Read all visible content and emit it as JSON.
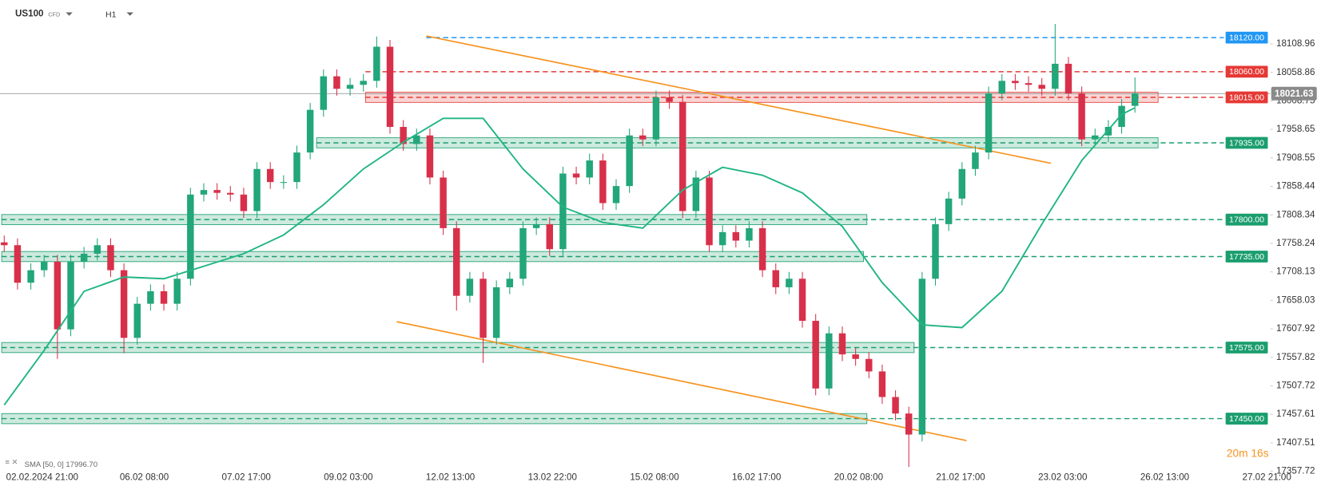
{
  "header": {
    "symbol": "US100",
    "kind": "CFD",
    "timeframe": "H1"
  },
  "chart_data": {
    "type": "candlestick",
    "x_labels": [
      "02.02.2024  21:00",
      "06.02  08:00",
      "07.02  17:00",
      "09.02  03:00",
      "12.02  13:00",
      "13.02  22:00",
      "15.02  08:00",
      "16.02  17:00",
      "20.02  08:00",
      "21.02  17:00",
      "23.02  03:00",
      "26.02  13:00",
      "27.02  21:00"
    ],
    "open": [
      17760,
      17755,
      17689,
      17711,
      17726,
      17607,
      17726,
      17740,
      17755,
      17711,
      17592,
      17652,
      17674,
      17652,
      17696,
      17844,
      17852,
      17847,
      17844,
      17815,
      17889,
      17866,
      17866,
      17918,
      17993,
      18052,
      18030,
      18037,
      18044,
      18104,
      17963,
      17933,
      17948,
      17874,
      17785,
      17666,
      17696,
      17592,
      17681,
      17696,
      17785,
      17792,
      17748,
      17881,
      17874,
      17904,
      17829,
      17859,
      17948,
      17941,
      18015,
      18007,
      17815,
      17874,
      17755,
      17778,
      17763,
      17785,
      17711,
      17681,
      17696,
      17622,
      17503,
      17600,
      17563,
      17555,
      17533,
      17488,
      17459,
      17422,
      17696,
      17792,
      17837,
      17889,
      17918,
      18022,
      18044,
      18040,
      18037,
      18030,
      18074,
      18022,
      17941,
      17948,
      17963,
      18000
    ],
    "high": [
      17772,
      17767,
      17723,
      17738,
      17738,
      17738,
      17752,
      17767,
      17767,
      17723,
      17664,
      17686,
      17686,
      17708,
      17856,
      17864,
      17864,
      17859,
      17856,
      17901,
      17901,
      17878,
      17930,
      18005,
      18064,
      18064,
      18049,
      18056,
      18122,
      18116,
      17975,
      17960,
      17960,
      17886,
      17797,
      17708,
      17708,
      17693,
      17708,
      17797,
      17804,
      17804,
      17893,
      17893,
      17916,
      17916,
      17871,
      17960,
      17960,
      18027,
      18027,
      18019,
      17886,
      17886,
      17790,
      17790,
      17797,
      17797,
      17723,
      17708,
      17708,
      17634,
      17612,
      17612,
      17575,
      17567,
      17545,
      17500,
      17471,
      17708,
      17804,
      17849,
      17901,
      17930,
      18034,
      18056,
      18056,
      18052,
      18049,
      18144,
      18086,
      18034,
      17960,
      17975,
      18012,
      18050
    ],
    "low": [
      17743,
      17677,
      17677,
      17699,
      17555,
      17595,
      17714,
      17728,
      17699,
      17565,
      17580,
      17640,
      17640,
      17640,
      17684,
      17832,
      17835,
      17832,
      17803,
      17803,
      17854,
      17854,
      17854,
      17906,
      17981,
      18018,
      18018,
      18025,
      18032,
      17951,
      17921,
      17921,
      17862,
      17773,
      17640,
      17654,
      17548,
      17580,
      17669,
      17684,
      17773,
      17736,
      17736,
      17862,
      17862,
      17817,
      17817,
      17847,
      17929,
      17929,
      17995,
      17803,
      17803,
      17743,
      17743,
      17751,
      17751,
      17699,
      17669,
      17669,
      17610,
      17491,
      17491,
      17551,
      17543,
      17521,
      17476,
      17447,
      17365,
      17410,
      17684,
      17780,
      17825,
      17877,
      17906,
      18010,
      18028,
      18025,
      18018,
      18018,
      18010,
      17929,
      17929,
      17936,
      17951,
      17988
    ],
    "close": [
      17755,
      17689,
      17711,
      17726,
      17607,
      17726,
      17740,
      17755,
      17711,
      17592,
      17652,
      17674,
      17652,
      17696,
      17844,
      17852,
      17847,
      17844,
      17815,
      17889,
      17866,
      17866,
      17918,
      17993,
      18052,
      18030,
      18037,
      18044,
      18104,
      17963,
      17933,
      17948,
      17874,
      17785,
      17666,
      17696,
      17592,
      17681,
      17696,
      17785,
      17792,
      17748,
      17881,
      17874,
      17904,
      17829,
      17859,
      17948,
      17941,
      18015,
      18007,
      17815,
      17874,
      17755,
      17778,
      17763,
      17785,
      17711,
      17681,
      17696,
      17622,
      17503,
      17600,
      17563,
      17555,
      17533,
      17488,
      17459,
      17422,
      17696,
      17792,
      17837,
      17889,
      17918,
      18022,
      18044,
      18040,
      18037,
      18030,
      18074,
      18022,
      17941,
      17948,
      17963,
      18000,
      18022
    ],
    "up_color": "#22a67a",
    "down_color": "#d8304a",
    "ylim": [
      17347.7,
      18185.2
    ],
    "yticks": [
      18108.96,
      18058.86,
      18008.75,
      17958.65,
      17908.55,
      17858.44,
      17808.34,
      17758.24,
      17708.13,
      17658.03,
      17607.92,
      17557.82,
      17507.72,
      17457.61,
      17407.51,
      17357.72
    ],
    "sma": {
      "label": "SMA [50, 0] 17996.70",
      "color": "#21b584",
      "x": [
        0,
        3,
        6,
        9,
        12,
        15,
        18,
        21,
        24,
        27,
        30,
        33,
        36,
        39,
        42,
        45,
        48,
        51,
        54,
        57,
        60,
        63,
        66,
        69,
        72,
        75,
        78,
        81,
        84,
        85
      ],
      "values": [
        17474,
        17570,
        17674,
        17699,
        17696,
        17718,
        17740,
        17773,
        17826,
        17889,
        17936,
        17978,
        17978,
        17889,
        17822,
        17795,
        17785,
        17852,
        17892,
        17878,
        17847,
        17788,
        17689,
        17615,
        17610,
        17674,
        17792,
        17904,
        17985,
        17996.7
      ]
    },
    "levels": [
      {
        "value": 18120,
        "label": "18120.00",
        "color": "#2196f3"
      },
      {
        "value": 18060,
        "label": "18060.00",
        "color": "#e53935"
      },
      {
        "value": 18015,
        "label": "18015.00",
        "color": "#e53935"
      },
      {
        "value": 17935,
        "label": "17935.00",
        "color": "#1b9e6e"
      },
      {
        "value": 17800,
        "label": "17800.00",
        "color": "#1b9e6e"
      },
      {
        "value": 17735,
        "label": "17735.00",
        "color": "#1b9e6e"
      },
      {
        "value": 17575,
        "label": "17575.00",
        "color": "#1b9e6e"
      },
      {
        "value": 17450,
        "label": "17450.00",
        "color": "#1b9e6e"
      }
    ],
    "last_price": {
      "value": 18021.63,
      "label": "18021.63"
    },
    "countdown": "20m 16s"
  }
}
